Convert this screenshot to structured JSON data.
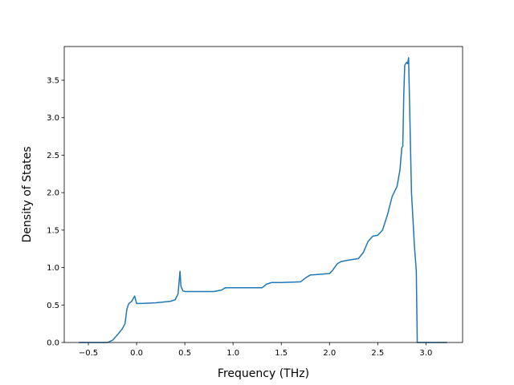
{
  "chart_data": {
    "type": "line",
    "title": "",
    "xlabel": "Frequency (THz)",
    "ylabel": "Density of States",
    "xlim": [
      -0.75,
      3.38
    ],
    "ylim": [
      0,
      3.95
    ],
    "xticks": [
      -0.5,
      0.0,
      0.5,
      1.0,
      1.5,
      2.0,
      2.5,
      3.0
    ],
    "xtick_labels": [
      "−0.5",
      "0.0",
      "0.5",
      "1.0",
      "1.5",
      "2.0",
      "2.5",
      "3.0"
    ],
    "yticks": [
      0.0,
      0.5,
      1.0,
      1.5,
      2.0,
      2.5,
      3.0,
      3.5
    ],
    "ytick_labels": [
      "0.0",
      "0.5",
      "1.0",
      "1.5",
      "2.0",
      "2.5",
      "3.0",
      "3.5"
    ],
    "grid": false,
    "colors": {
      "line": "#1f77b4"
    },
    "series": [
      {
        "x": [
          -0.6,
          -0.5,
          -0.4,
          -0.3,
          -0.25,
          -0.2,
          -0.15,
          -0.12,
          -0.1,
          -0.08,
          -0.05,
          -0.02,
          0.0,
          0.05,
          0.2,
          0.35,
          0.4,
          0.43,
          0.45,
          0.46,
          0.48,
          0.5,
          0.6,
          0.8,
          0.88,
          0.92,
          1.0,
          1.1,
          1.3,
          1.35,
          1.4,
          1.5,
          1.7,
          1.75,
          1.8,
          1.9,
          2.0,
          2.03,
          2.08,
          2.12,
          2.2,
          2.3,
          2.35,
          2.4,
          2.45,
          2.5,
          2.55,
          2.6,
          2.65,
          2.7,
          2.73,
          2.75,
          2.76,
          2.77,
          2.78,
          2.8,
          2.81,
          2.82,
          2.83,
          2.85,
          2.88,
          2.9,
          2.91,
          2.95,
          3.0,
          3.1,
          3.22
        ],
        "y": [
          0.0,
          0.0,
          0.0,
          0.0,
          0.03,
          0.1,
          0.18,
          0.25,
          0.45,
          0.52,
          0.55,
          0.62,
          0.52,
          0.52,
          0.53,
          0.55,
          0.57,
          0.65,
          0.95,
          0.75,
          0.69,
          0.68,
          0.68,
          0.68,
          0.7,
          0.73,
          0.73,
          0.73,
          0.73,
          0.78,
          0.8,
          0.8,
          0.81,
          0.86,
          0.9,
          0.91,
          0.92,
          0.96,
          1.05,
          1.08,
          1.1,
          1.12,
          1.2,
          1.35,
          1.42,
          1.43,
          1.5,
          1.7,
          1.95,
          2.08,
          2.3,
          2.6,
          2.62,
          3.3,
          3.7,
          3.74,
          3.72,
          3.8,
          3.2,
          2.0,
          1.3,
          0.95,
          0.0,
          0.0,
          0.0,
          0.0,
          0.0
        ]
      }
    ]
  }
}
